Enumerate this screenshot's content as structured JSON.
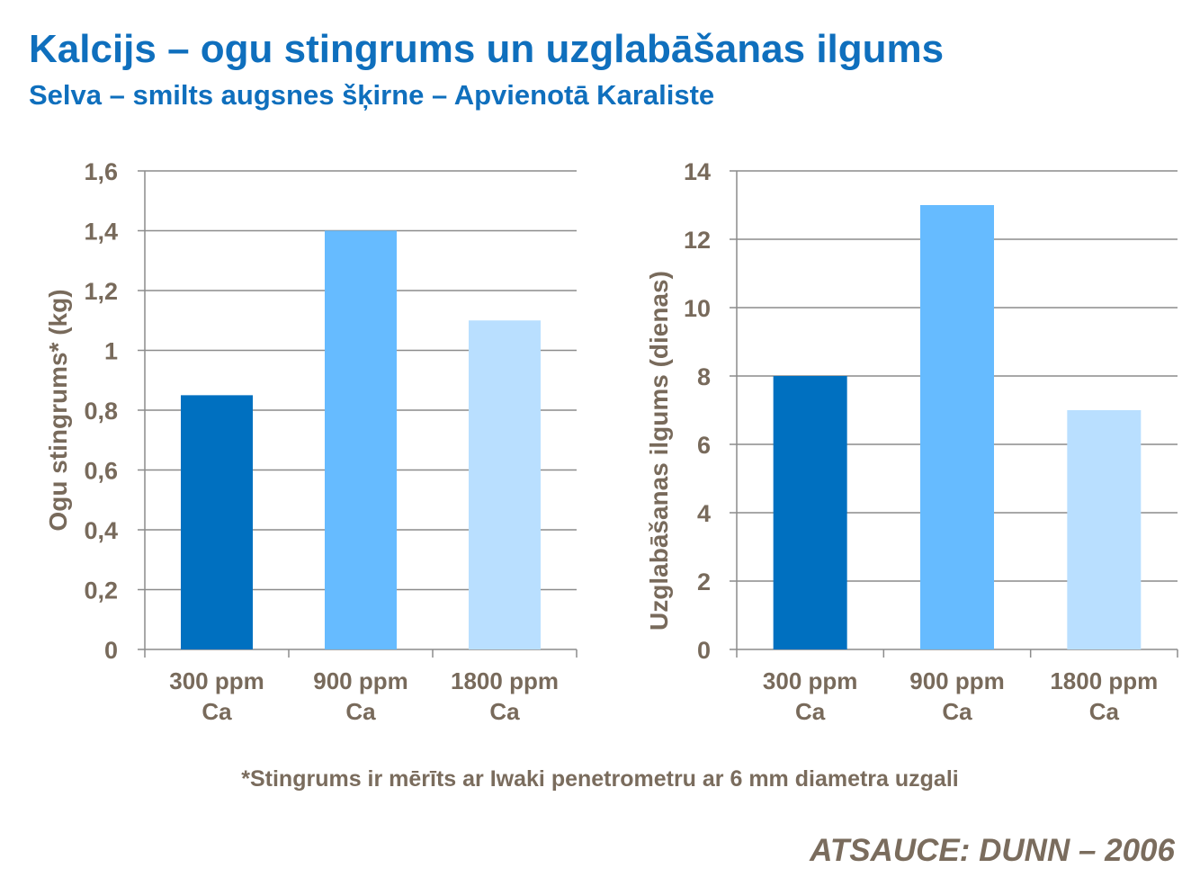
{
  "header": {
    "title": "Kalcijs – ogu stingrums un uzglabāšanas ilgums",
    "subtitle": "Selva – smilts augsnes šķirne – Apvienotā Karaliste"
  },
  "footnote": "*Stingrums ir mērīts ar Iwaki penetrometru ar 6 mm diametra uzgali",
  "source": "ATSAUCE:  DUNN – 2006",
  "colors": {
    "bar_dark": "#0070c0",
    "bar_medium": "#66bbff",
    "bar_light": "#b9dfff",
    "grid": "#8c8c8c",
    "axis_text": "#786a5b"
  },
  "chart_data": [
    {
      "type": "bar",
      "title": "",
      "ylabel": "Ogu stingrums* (kg)",
      "xlabel": "",
      "categories": [
        [
          "300 ppm",
          "Ca"
        ],
        [
          "900 ppm",
          "Ca"
        ],
        [
          "1800 ppm",
          "Ca"
        ]
      ],
      "values": [
        0.85,
        1.4,
        1.1
      ],
      "ylim": [
        0,
        1.6
      ],
      "yticks": [
        "0",
        "0,2",
        "0,4",
        "0,6",
        "0,8",
        "1",
        "1,2",
        "1,4",
        "1,6"
      ],
      "grid": true,
      "legend": "none"
    },
    {
      "type": "bar",
      "title": "",
      "ylabel": "Uzglabāšanas ilgums (dienas)",
      "xlabel": "",
      "categories": [
        [
          "300 ppm",
          "Ca"
        ],
        [
          "900 ppm",
          "Ca"
        ],
        [
          "1800 ppm",
          "Ca"
        ]
      ],
      "values": [
        8,
        13,
        7
      ],
      "ylim": [
        0,
        14
      ],
      "yticks": [
        "0",
        "2",
        "4",
        "6",
        "8",
        "10",
        "12",
        "14"
      ],
      "grid": true,
      "legend": "none"
    }
  ]
}
